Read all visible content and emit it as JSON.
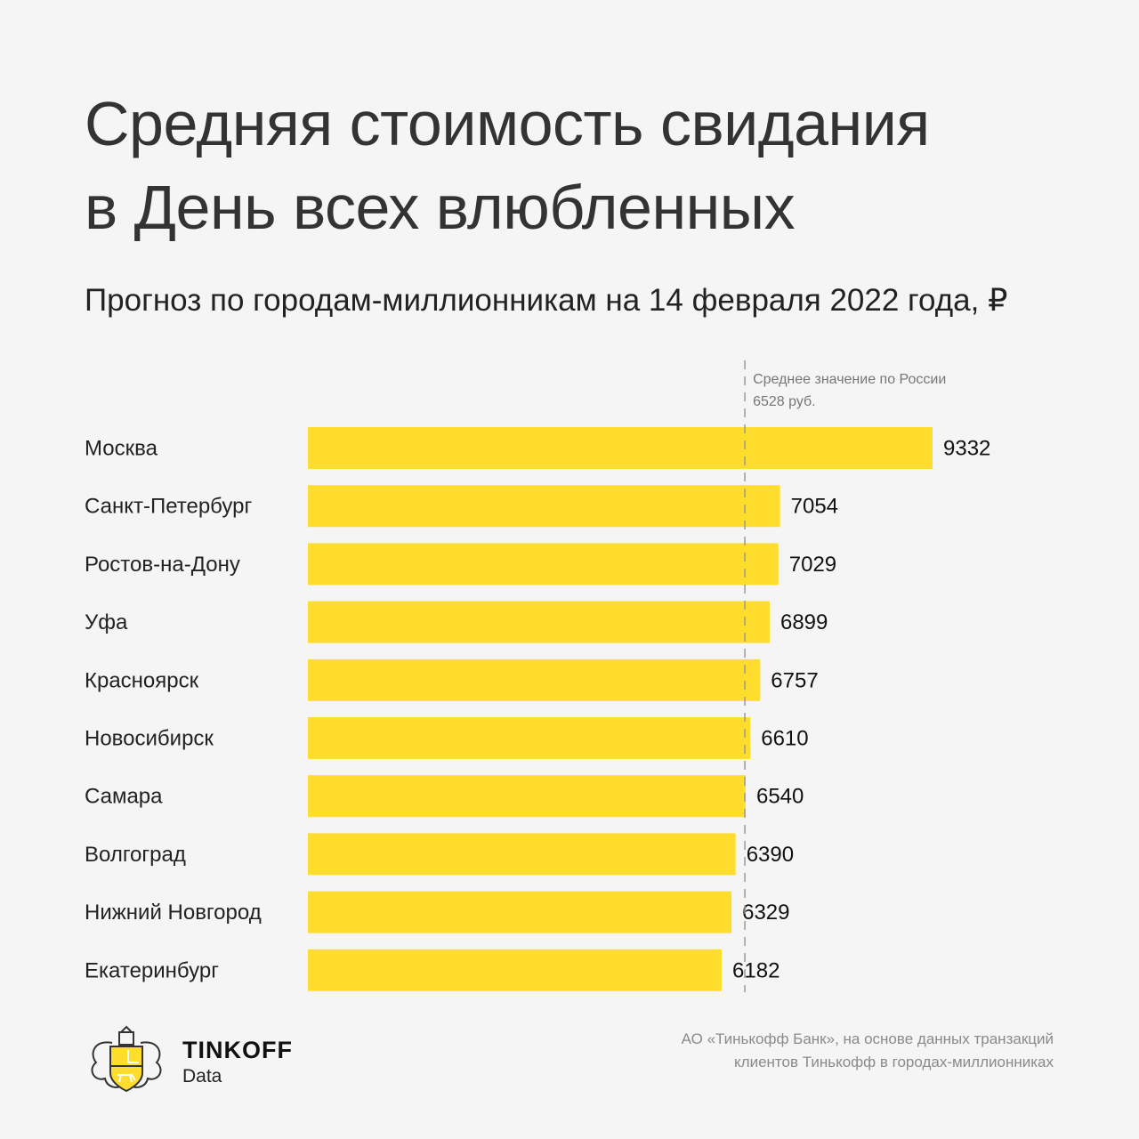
{
  "header": {
    "title_line1": "Средняя стоимость свидания",
    "title_line2": "в День всех влюбленных",
    "subtitle": "Прогноз по городам-миллионникам на 14 февраля 2022 года, ₽"
  },
  "chart_data": {
    "type": "bar",
    "orientation": "horizontal",
    "title": "Средняя стоимость свидания в День всех влюбленных",
    "subtitle": "Прогноз по городам-миллионникам на 14 февраля 2022 года, ₽",
    "categories": [
      "Москва",
      "Санкт-Петербург",
      "Ростов-на-Дону",
      "Уфа",
      "Красноярск",
      "Новосибирск",
      "Самара",
      "Волгоград",
      "Нижний Новгород",
      "Екатеринбург"
    ],
    "values": [
      9332,
      7054,
      7029,
      6899,
      6757,
      6610,
      6540,
      6390,
      6329,
      6182
    ],
    "xlim": [
      0,
      9332
    ],
    "grid": false,
    "reference_line": {
      "value": 6528,
      "label_line1": "Среднее значение по России",
      "label_line2": "6528 руб."
    },
    "bar_color": "#ffdd2d"
  },
  "footer": {
    "brand": "TINKOFF",
    "brand_sub": "Data",
    "source_line1": "АО «Тинькофф Банк», на основе данных транзакций",
    "source_line2": "клиентов Тинькофф в городах-миллионниках"
  }
}
